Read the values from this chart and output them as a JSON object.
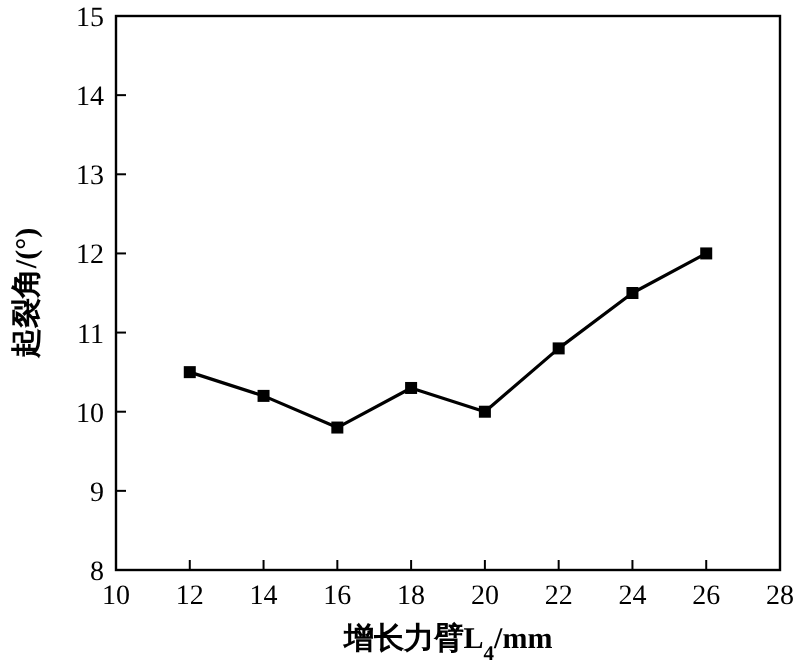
{
  "chart_data": {
    "type": "line",
    "xlabel": "增长力臂L$_{4}$/mm",
    "ylabel": "起裂角/(°)",
    "x": [
      12,
      14,
      16,
      18,
      20,
      22,
      24,
      26
    ],
    "values": [
      10.5,
      10.2,
      9.8,
      10.3,
      10.0,
      10.8,
      11.5,
      12.0
    ],
    "color": "#000000",
    "marker": "square",
    "line_style": "solid",
    "xlim": [
      10,
      28
    ],
    "xticks": [
      10,
      12,
      14,
      16,
      18,
      20,
      22,
      24,
      26,
      28
    ],
    "ylim": [
      8,
      15
    ],
    "yticks": [
      8,
      9,
      10,
      11,
      12,
      13,
      14,
      15
    ]
  }
}
